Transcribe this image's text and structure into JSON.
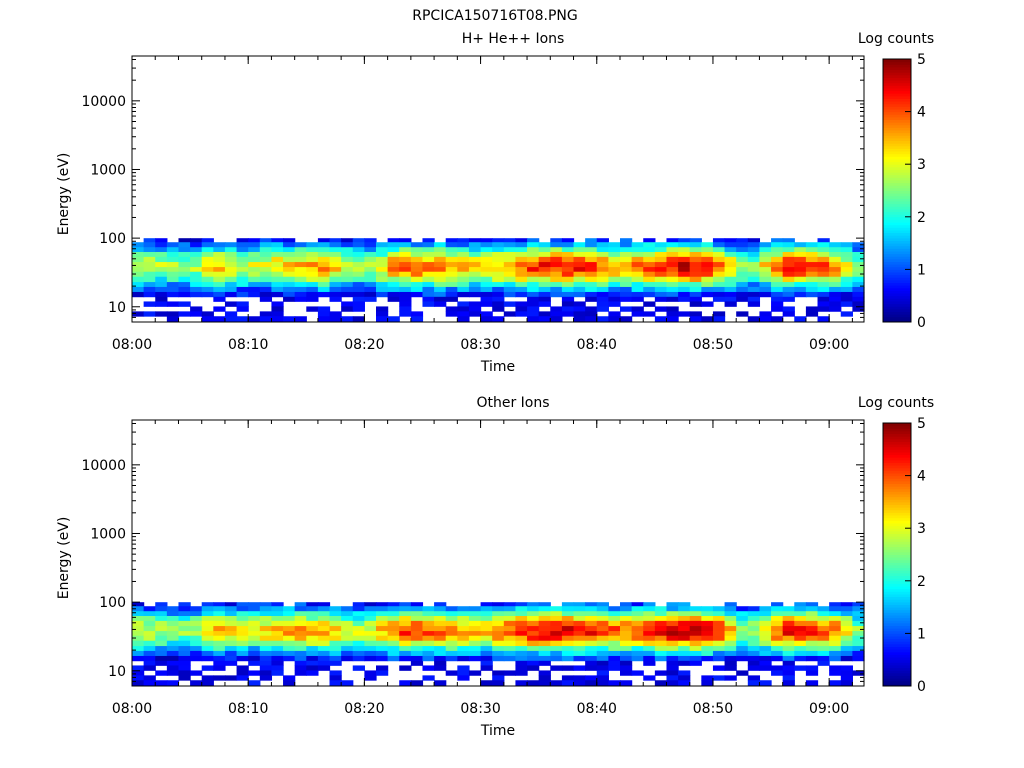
{
  "figure": {
    "title": "RPCICA150716T08.PNG"
  },
  "colorbar_colormap": [
    "#00007f",
    "#0000ff",
    "#0080ff",
    "#00ffff",
    "#80ff80",
    "#ffff00",
    "#ff8000",
    "#ff0000",
    "#7f0000"
  ],
  "chart_data": [
    {
      "type": "heatmap",
      "title": "H+ He++ Ions",
      "xlabel": "Time",
      "ylabel": "Energy (eV)",
      "x_range": [
        "08:00",
        "09:03"
      ],
      "y_range": [
        6,
        45000
      ],
      "y_scale": "log",
      "x_ticks": [
        "08:00",
        "08:10",
        "08:20",
        "08:30",
        "08:40",
        "08:50",
        "09:00"
      ],
      "y_ticks": [
        "10",
        "100",
        "1000",
        "10000"
      ],
      "colorbar": {
        "label": "Log counts",
        "range": [
          0,
          5
        ],
        "ticks": [
          "0",
          "1",
          "2",
          "3",
          "4",
          "5"
        ]
      },
      "energy_bands_eV": [
        95,
        80,
        68,
        58,
        49,
        41,
        35,
        30,
        25,
        21,
        18,
        15,
        13,
        11,
        9.3,
        7.9,
        6.7
      ],
      "profile": {
        "description_free": true,
        "peak_log_counts_by_time": [
          {
            "t": "08:00",
            "v": 3.0
          },
          {
            "t": "08:05",
            "v": 2.4
          },
          {
            "t": "08:07",
            "v": 3.5
          },
          {
            "t": "08:10",
            "v": 2.8
          },
          {
            "t": "08:13",
            "v": 3.4
          },
          {
            "t": "08:17",
            "v": 3.6
          },
          {
            "t": "08:20",
            "v": 2.4
          },
          {
            "t": "08:23",
            "v": 4.0
          },
          {
            "t": "08:27",
            "v": 3.8
          },
          {
            "t": "08:30",
            "v": 3.2
          },
          {
            "t": "08:35",
            "v": 4.2
          },
          {
            "t": "08:38",
            "v": 4.3
          },
          {
            "t": "08:42",
            "v": 3.6
          },
          {
            "t": "08:45",
            "v": 4.2
          },
          {
            "t": "08:48",
            "v": 4.6
          },
          {
            "t": "08:50",
            "v": 4.3
          },
          {
            "t": "08:53",
            "v": 2.2
          },
          {
            "t": "08:56",
            "v": 4.3
          },
          {
            "t": "09:00",
            "v": 4.0
          },
          {
            "t": "09:03",
            "v": 2.2
          }
        ]
      }
    },
    {
      "type": "heatmap",
      "title": "Other Ions",
      "xlabel": "Time",
      "ylabel": "Energy (eV)",
      "x_range": [
        "08:00",
        "09:03"
      ],
      "y_range": [
        6,
        45000
      ],
      "y_scale": "log",
      "x_ticks": [
        "08:00",
        "08:10",
        "08:20",
        "08:30",
        "08:40",
        "08:50",
        "09:00"
      ],
      "y_ticks": [
        "10",
        "100",
        "1000",
        "10000"
      ],
      "colorbar": {
        "label": "Log counts",
        "range": [
          0,
          5
        ],
        "ticks": [
          "0",
          "1",
          "2",
          "3",
          "4",
          "5"
        ]
      },
      "energy_bands_eV": [
        95,
        80,
        68,
        58,
        49,
        41,
        35,
        30,
        25,
        21,
        18,
        15,
        13,
        11,
        9.3,
        7.9,
        6.7
      ],
      "profile": {
        "description_free": true,
        "peak_log_counts_by_time": [
          {
            "t": "08:00",
            "v": 3.0
          },
          {
            "t": "08:05",
            "v": 2.5
          },
          {
            "t": "08:07",
            "v": 3.6
          },
          {
            "t": "08:10",
            "v": 3.0
          },
          {
            "t": "08:13",
            "v": 3.6
          },
          {
            "t": "08:17",
            "v": 3.6
          },
          {
            "t": "08:20",
            "v": 2.6
          },
          {
            "t": "08:23",
            "v": 4.1
          },
          {
            "t": "08:27",
            "v": 3.9
          },
          {
            "t": "08:30",
            "v": 3.4
          },
          {
            "t": "08:35",
            "v": 4.5
          },
          {
            "t": "08:38",
            "v": 4.5
          },
          {
            "t": "08:42",
            "v": 3.8
          },
          {
            "t": "08:45",
            "v": 4.4
          },
          {
            "t": "08:48",
            "v": 4.7
          },
          {
            "t": "08:50",
            "v": 4.5
          },
          {
            "t": "08:53",
            "v": 2.4
          },
          {
            "t": "08:56",
            "v": 4.3
          },
          {
            "t": "09:00",
            "v": 4.1
          },
          {
            "t": "09:03",
            "v": 2.3
          }
        ]
      }
    }
  ]
}
